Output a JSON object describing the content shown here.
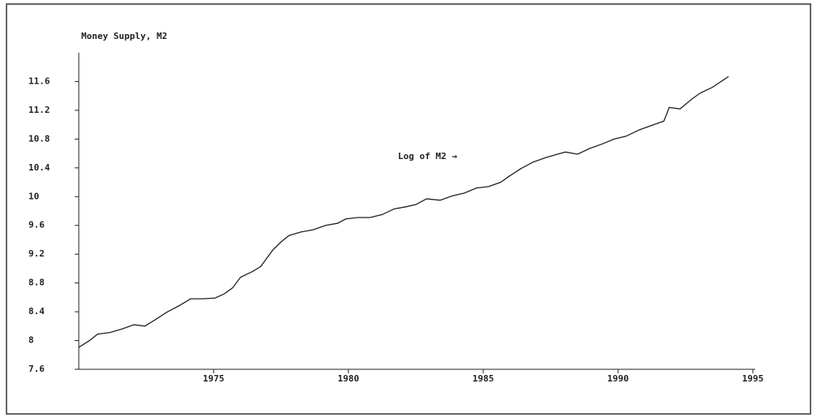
{
  "chart_data": {
    "type": "line",
    "title": "Money Supply, M2",
    "annotation": "Log of M2 →",
    "x": [
      1970.0,
      1970.4,
      1970.7,
      1971.15,
      1971.6,
      1972.05,
      1972.45,
      1972.8,
      1973.25,
      1973.7,
      1974.15,
      1974.6,
      1975.05,
      1975.4,
      1975.7,
      1976.0,
      1976.45,
      1976.75,
      1977.2,
      1977.5,
      1977.8,
      1978.25,
      1978.7,
      1979.15,
      1979.6,
      1979.9,
      1980.35,
      1980.8,
      1981.25,
      1981.7,
      1982.15,
      1982.5,
      1982.9,
      1983.4,
      1983.85,
      1984.3,
      1984.75,
      1985.2,
      1985.65,
      1985.95,
      1986.4,
      1986.85,
      1987.3,
      1987.75,
      1988.05,
      1988.5,
      1988.95,
      1989.4,
      1989.85,
      1990.3,
      1990.8,
      1991.25,
      1991.7,
      1991.9,
      1992.3,
      1992.75,
      1993.05,
      1993.5,
      1994.1
    ],
    "series": [
      {
        "name": "Log of M2",
        "color": "#222222",
        "values": [
          7.905,
          8.0,
          8.09,
          8.11,
          8.16,
          8.22,
          8.2,
          8.28,
          8.39,
          8.48,
          8.58,
          8.58,
          8.59,
          8.65,
          8.73,
          8.88,
          8.96,
          9.03,
          9.26,
          9.37,
          9.46,
          9.51,
          9.54,
          9.6,
          9.63,
          9.69,
          9.71,
          9.71,
          9.75,
          9.83,
          9.86,
          9.89,
          9.97,
          9.95,
          10.01,
          10.05,
          10.12,
          10.14,
          10.2,
          10.28,
          10.39,
          10.48,
          10.54,
          10.59,
          10.62,
          10.59,
          10.67,
          10.73,
          10.8,
          10.84,
          10.93,
          10.99,
          11.05,
          11.24,
          11.22,
          11.36,
          11.44,
          11.52,
          11.67
        ]
      }
    ],
    "xlim": [
      1970,
      1995
    ],
    "xticks": [
      1975,
      1980,
      1985,
      1990,
      1995
    ],
    "ylim": [
      7.6,
      12.0
    ],
    "yticks": [
      {
        "value": 7.6,
        "label": "7.6"
      },
      8,
      {
        "value": 8.4,
        "label": "8.4"
      },
      {
        "value": 8.8,
        "label": "8.8"
      },
      {
        "value": 9.2,
        "label": "9.2"
      },
      {
        "value": 9.6,
        "label": "9.6"
      },
      10,
      {
        "value": 10.4,
        "label": "10.4"
      },
      {
        "value": 10.8,
        "label": "10.8"
      },
      {
        "value": 11.2,
        "label": "11.2"
      },
      {
        "value": 11.6,
        "label": "11.6"
      }
    ]
  }
}
